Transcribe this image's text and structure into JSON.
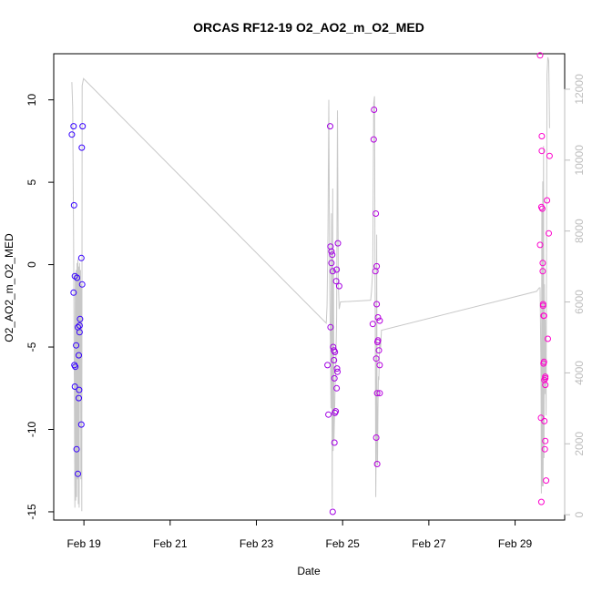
{
  "chart_data": {
    "type": "scatter",
    "title": "ORCAS RF12-19 O2_AO2_m_O2_MED",
    "xlabel": "Date",
    "ylabel": "O2_AO2_m_O2_MED",
    "y_ticks": [
      -15,
      -10,
      -5,
      0,
      5,
      10
    ],
    "y_tick_labels": [
      "-15",
      "-10",
      "-5",
      "0",
      "5",
      "10"
    ],
    "ylim": [
      -15.5,
      12.8
    ],
    "x_ticks": [
      19,
      21,
      23,
      25,
      27,
      29
    ],
    "x_tick_labels": [
      "Feb 19",
      "Feb 21",
      "Feb 23",
      "Feb 25",
      "Feb 27",
      "Feb 29"
    ],
    "xlim": [
      18.3,
      30.15
    ],
    "y2_ticks": [
      0,
      2000,
      4000,
      6000,
      8000,
      10000,
      12000
    ],
    "y2_tick_labels": [
      "0",
      "2000",
      "4000",
      "6000",
      "8000",
      "10000",
      "12000"
    ],
    "y2lim": [
      -150,
      13000
    ],
    "colors": {
      "start": "#3300ff",
      "end": "#ff00cc",
      "secondary_line": "#c8c8c8",
      "axis_right": "#bdbdbd"
    },
    "series": [
      {
        "type": "scatter",
        "points": [
          [
            18.72,
            7.9
          ],
          [
            18.76,
            8.4
          ],
          [
            18.77,
            3.6
          ],
          [
            18.76,
            -1.7
          ],
          [
            18.79,
            -0.7
          ],
          [
            18.84,
            -0.8
          ],
          [
            18.78,
            -6.1
          ],
          [
            18.8,
            -6.2
          ],
          [
            18.79,
            -7.4
          ],
          [
            18.82,
            -4.9
          ],
          [
            18.83,
            -11.2
          ],
          [
            18.86,
            -12.7
          ],
          [
            18.86,
            -3.8
          ],
          [
            18.88,
            -5.5
          ],
          [
            18.9,
            -3.7
          ],
          [
            18.9,
            -4.1
          ],
          [
            18.89,
            -7.6
          ],
          [
            18.88,
            -8.1
          ],
          [
            18.91,
            -3.3
          ],
          [
            18.94,
            -9.7
          ],
          [
            18.94,
            0.4
          ],
          [
            18.96,
            -1.2
          ],
          [
            18.95,
            7.1
          ],
          [
            18.97,
            8.4
          ],
          [
            24.65,
            -6.1
          ],
          [
            24.67,
            -9.1
          ],
          [
            24.71,
            8.4
          ],
          [
            24.72,
            1.1
          ],
          [
            24.74,
            0.1
          ],
          [
            24.74,
            0.8
          ],
          [
            24.72,
            -3.8
          ],
          [
            24.76,
            0.6
          ],
          [
            24.77,
            -0.4
          ],
          [
            24.77,
            -15.0
          ],
          [
            24.78,
            -5.0
          ],
          [
            24.8,
            -5.2
          ],
          [
            24.8,
            -5.8
          ],
          [
            24.81,
            -6.9
          ],
          [
            24.81,
            -10.8
          ],
          [
            24.82,
            -5.3
          ],
          [
            24.82,
            -9.0
          ],
          [
            24.84,
            -8.9
          ],
          [
            24.85,
            -1.0
          ],
          [
            24.86,
            -0.3
          ],
          [
            24.86,
            -7.5
          ],
          [
            24.87,
            -6.3
          ],
          [
            24.88,
            -6.5
          ],
          [
            24.89,
            1.3
          ],
          [
            24.92,
            -1.3
          ],
          [
            25.7,
            -3.6
          ],
          [
            25.73,
            9.4
          ],
          [
            25.72,
            7.6
          ],
          [
            25.76,
            -0.4
          ],
          [
            25.77,
            3.1
          ],
          [
            25.78,
            -10.5
          ],
          [
            25.78,
            -5.7
          ],
          [
            25.79,
            -0.1
          ],
          [
            25.79,
            -2.4
          ],
          [
            25.8,
            -12.1
          ],
          [
            25.8,
            -7.8
          ],
          [
            25.81,
            -4.7
          ],
          [
            25.82,
            -4.6
          ],
          [
            25.82,
            -3.2
          ],
          [
            25.84,
            -5.2
          ],
          [
            25.86,
            -3.4
          ],
          [
            25.86,
            -6.1
          ],
          [
            25.86,
            -7.8
          ],
          [
            29.58,
            12.7
          ],
          [
            29.58,
            1.2
          ],
          [
            29.6,
            -9.3
          ],
          [
            29.61,
            -14.4
          ],
          [
            29.61,
            3.5
          ],
          [
            29.62,
            7.8
          ],
          [
            29.62,
            6.9
          ],
          [
            29.63,
            3.4
          ],
          [
            29.64,
            -0.4
          ],
          [
            29.64,
            0.1
          ],
          [
            29.65,
            -2.4
          ],
          [
            29.65,
            -2.5
          ],
          [
            29.66,
            -3.1
          ],
          [
            29.67,
            -3.1
          ],
          [
            29.66,
            -6.0
          ],
          [
            29.67,
            -5.9
          ],
          [
            29.68,
            -7.0
          ],
          [
            29.68,
            -9.5
          ],
          [
            29.69,
            -11.2
          ],
          [
            29.7,
            -10.7
          ],
          [
            29.72,
            -13.1
          ],
          [
            29.7,
            -7.3
          ],
          [
            29.7,
            -6.8
          ],
          [
            29.7,
            -6.9
          ],
          [
            29.74,
            3.9
          ],
          [
            29.76,
            -4.5
          ],
          [
            29.78,
            1.9
          ],
          [
            29.8,
            6.6
          ]
        ]
      },
      {
        "type": "line",
        "axis": "right",
        "points": [
          [
            18.72,
            12200
          ],
          [
            18.74,
            11500
          ],
          [
            18.76,
            7800
          ],
          [
            18.78,
            3200
          ],
          [
            18.79,
            200
          ],
          [
            18.8,
            6800
          ],
          [
            18.81,
            400
          ],
          [
            18.82,
            6900
          ],
          [
            18.83,
            500
          ],
          [
            18.84,
            7100
          ],
          [
            18.85,
            1000
          ],
          [
            18.86,
            7200
          ],
          [
            18.87,
            300
          ],
          [
            18.88,
            7000
          ],
          [
            18.89,
            200
          ],
          [
            18.9,
            7100
          ],
          [
            18.91,
            3500
          ],
          [
            18.92,
            6900
          ],
          [
            18.93,
            1000
          ],
          [
            18.94,
            6500
          ],
          [
            18.95,
            100
          ],
          [
            18.96,
            12100
          ],
          [
            18.99,
            12300
          ],
          [
            24.62,
            5400
          ],
          [
            24.64,
            5900
          ],
          [
            24.66,
            8000
          ],
          [
            24.68,
            11700
          ],
          [
            24.7,
            6500
          ],
          [
            24.72,
            4500
          ],
          [
            24.73,
            3000
          ],
          [
            24.74,
            8500
          ],
          [
            24.76,
            200
          ],
          [
            24.77,
            9200
          ],
          [
            24.78,
            1800
          ],
          [
            24.79,
            6900
          ],
          [
            24.8,
            2100
          ],
          [
            24.82,
            3300
          ],
          [
            24.83,
            3800
          ],
          [
            24.84,
            4000
          ],
          [
            24.86,
            5600
          ],
          [
            24.88,
            11400
          ],
          [
            24.9,
            6500
          ],
          [
            24.92,
            5800
          ],
          [
            24.95,
            6000
          ],
          [
            25.65,
            6050
          ],
          [
            25.67,
            6300
          ],
          [
            25.7,
            6900
          ],
          [
            25.72,
            11600
          ],
          [
            25.74,
            11800
          ],
          [
            25.75,
            7600
          ],
          [
            25.76,
            4100
          ],
          [
            25.77,
            500
          ],
          [
            25.78,
            2200
          ],
          [
            25.79,
            7900
          ],
          [
            25.8,
            1500
          ],
          [
            25.81,
            1400
          ],
          [
            25.82,
            3000
          ],
          [
            25.83,
            3900
          ],
          [
            25.84,
            3800
          ],
          [
            25.86,
            5000
          ],
          [
            25.88,
            4700
          ],
          [
            25.9,
            5200
          ],
          [
            29.5,
            6300
          ],
          [
            29.56,
            6400
          ],
          [
            29.58,
            6400
          ],
          [
            29.6,
            4000
          ],
          [
            29.61,
            600
          ],
          [
            29.62,
            8600
          ],
          [
            29.63,
            800
          ],
          [
            29.64,
            9400
          ],
          [
            29.65,
            800
          ],
          [
            29.66,
            10400
          ],
          [
            29.67,
            1600
          ],
          [
            29.68,
            6500
          ],
          [
            29.69,
            3400
          ],
          [
            29.7,
            5500
          ],
          [
            29.72,
            2800
          ],
          [
            29.74,
            12400
          ],
          [
            29.76,
            12900
          ],
          [
            29.78,
            12800
          ],
          [
            29.8,
            10900
          ]
        ]
      }
    ]
  }
}
